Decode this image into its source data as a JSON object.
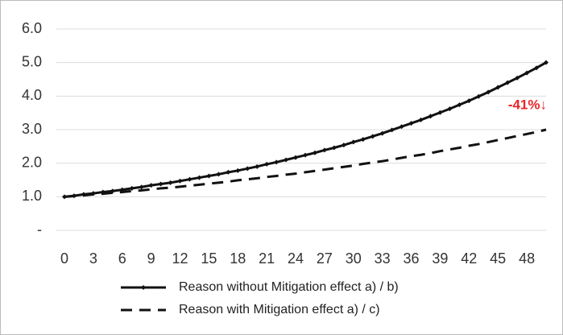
{
  "chart_data": {
    "type": "line",
    "x": [
      0,
      1,
      2,
      3,
      4,
      5,
      6,
      7,
      8,
      9,
      10,
      11,
      12,
      13,
      14,
      15,
      16,
      17,
      18,
      19,
      20,
      21,
      22,
      23,
      24,
      25,
      26,
      27,
      28,
      29,
      30,
      31,
      32,
      33,
      34,
      35,
      36,
      37,
      38,
      39,
      40,
      41,
      42,
      43,
      44,
      45,
      46,
      47,
      48,
      49,
      50
    ],
    "xlim": [
      0,
      50
    ],
    "xticks": [
      0,
      3,
      6,
      9,
      12,
      15,
      18,
      21,
      24,
      27,
      30,
      33,
      36,
      39,
      42,
      45,
      48
    ],
    "ylim": [
      0,
      6
    ],
    "yticks": [
      {
        "value": 0,
        "label": "-"
      },
      {
        "value": 1,
        "label": "1.0"
      },
      {
        "value": 2,
        "label": "2.0"
      },
      {
        "value": 3,
        "label": "3.0"
      },
      {
        "value": 4,
        "label": "4.0"
      },
      {
        "value": 5,
        "label": "5.0"
      },
      {
        "value": 6,
        "label": "6.0"
      }
    ],
    "grid": true,
    "series": [
      {
        "name": "Reason without Mitigation effect a) / b)",
        "color": "#111111",
        "dash": false,
        "markers": true,
        "values": [
          1.0,
          1.03,
          1.07,
          1.1,
          1.14,
          1.17,
          1.21,
          1.25,
          1.29,
          1.34,
          1.38,
          1.42,
          1.47,
          1.52,
          1.57,
          1.62,
          1.67,
          1.73,
          1.78,
          1.84,
          1.9,
          1.97,
          2.03,
          2.1,
          2.17,
          2.24,
          2.31,
          2.39,
          2.46,
          2.54,
          2.63,
          2.71,
          2.8,
          2.89,
          2.99,
          3.09,
          3.19,
          3.29,
          3.4,
          3.51,
          3.62,
          3.74,
          3.86,
          3.99,
          4.12,
          4.26,
          4.4,
          4.54,
          4.69,
          4.84,
          5.0
        ]
      },
      {
        "name": "Reason with Mitigation effect a) / c)",
        "color": "#111111",
        "dash": true,
        "markers": false,
        "values": [
          1.0,
          1.02,
          1.04,
          1.07,
          1.09,
          1.12,
          1.14,
          1.17,
          1.19,
          1.22,
          1.25,
          1.27,
          1.3,
          1.33,
          1.36,
          1.39,
          1.42,
          1.45,
          1.49,
          1.52,
          1.55,
          1.59,
          1.62,
          1.66,
          1.69,
          1.73,
          1.77,
          1.81,
          1.85,
          1.89,
          1.93,
          1.98,
          2.02,
          2.06,
          2.11,
          2.16,
          2.21,
          2.25,
          2.3,
          2.36,
          2.41,
          2.46,
          2.52,
          2.57,
          2.63,
          2.69,
          2.75,
          2.81,
          2.87,
          2.93,
          3.0
        ]
      }
    ],
    "annotations": [
      {
        "text": "-41%↓"
      }
    ]
  }
}
